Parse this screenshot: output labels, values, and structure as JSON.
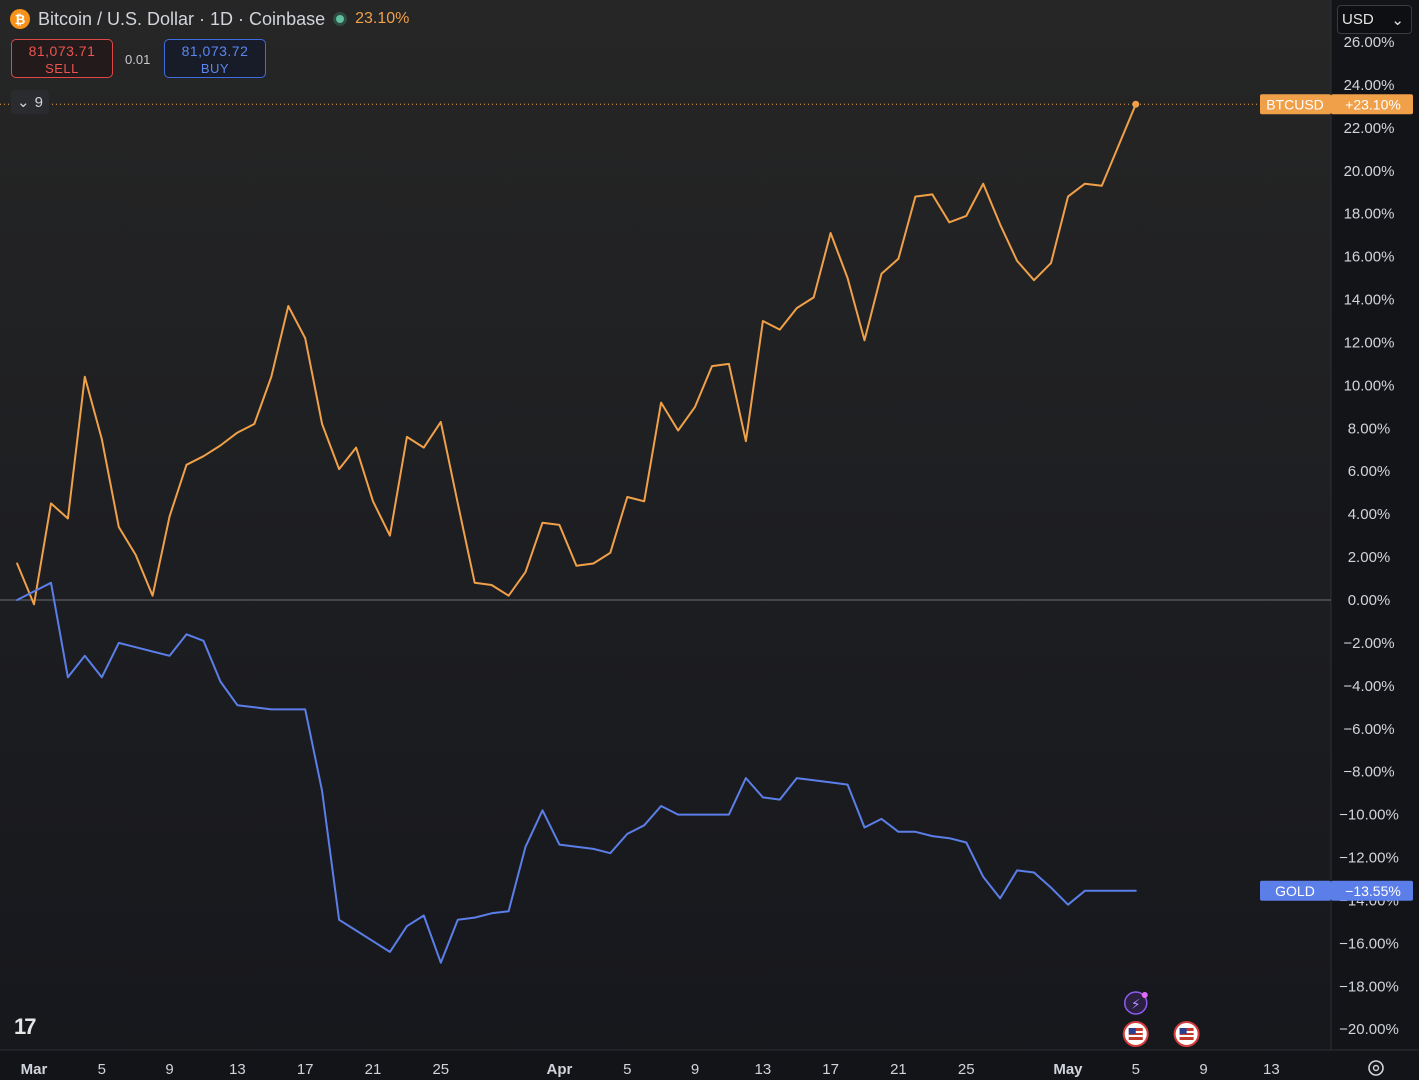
{
  "header": {
    "coin_icon": "bitcoin-icon",
    "symbol_title": "Bitcoin / U.S. Dollar · 1D · Coinbase",
    "market_status_icon": "market-open-dot-icon",
    "change_pct": "23.10%"
  },
  "trade": {
    "sell_price": "81,073.71",
    "sell_label": "SELL",
    "spread": "0.01",
    "buy_price": "81,073.72",
    "buy_label": "BUY"
  },
  "indicators": {
    "collapse_icon": "chevron-down-icon",
    "count": "9"
  },
  "currency": {
    "value": "USD",
    "icon": "chevron-down-icon"
  },
  "branding": {
    "logo_text": "17",
    "logo_icon": "tradingview-logo-icon"
  },
  "settings_icon": "gear-icon",
  "colors": {
    "btc": "#f0a049",
    "gold": "#5b7ee8",
    "sell": "#ef5350",
    "buy": "#5b86f0",
    "axis_text": "#d1d4dc"
  },
  "chart_data": {
    "type": "line",
    "ylabel": "",
    "y_unit": "%",
    "ylim": [
      -21.5,
      26.5
    ],
    "y_ticks": [
      26,
      24,
      22,
      20,
      18,
      16,
      14,
      12,
      10,
      8,
      6,
      4,
      2,
      0,
      -2,
      -4,
      -6,
      -8,
      -10,
      -12,
      -14,
      -16,
      -18,
      -20
    ],
    "y_tick_labels": [
      "26.00%",
      "24.00%",
      "22.00%",
      "20.00%",
      "18.00%",
      "16.00%",
      "14.00%",
      "12.00%",
      "10.00%",
      "8.00%",
      "6.00%",
      "4.00%",
      "2.00%",
      "0.00%",
      "−2.00%",
      "−4.00%",
      "−6.00%",
      "−8.00%",
      "−10.00%",
      "−12.00%",
      "−14.00%",
      "−16.00%",
      "−18.00%",
      "−20.00%"
    ],
    "x_range": [
      "2025-03-01",
      "2025-05-20"
    ],
    "x_ticks": [
      {
        "date": "2025-03-01",
        "label": "Mar",
        "bold": true
      },
      {
        "date": "2025-03-05",
        "label": "5"
      },
      {
        "date": "2025-03-09",
        "label": "9"
      },
      {
        "date": "2025-03-13",
        "label": "13"
      },
      {
        "date": "2025-03-17",
        "label": "17"
      },
      {
        "date": "2025-03-21",
        "label": "21"
      },
      {
        "date": "2025-03-25",
        "label": "25"
      },
      {
        "date": "2025-04-01",
        "label": "Apr",
        "bold": true
      },
      {
        "date": "2025-04-05",
        "label": "5"
      },
      {
        "date": "2025-04-09",
        "label": "9"
      },
      {
        "date": "2025-04-13",
        "label": "13"
      },
      {
        "date": "2025-04-17",
        "label": "17"
      },
      {
        "date": "2025-04-21",
        "label": "21"
      },
      {
        "date": "2025-04-25",
        "label": "25"
      },
      {
        "date": "2025-05-01",
        "label": "May",
        "bold": true
      },
      {
        "date": "2025-05-05",
        "label": "5"
      },
      {
        "date": "2025-05-09",
        "label": "9"
      },
      {
        "date": "2025-05-13",
        "label": "13"
      }
    ],
    "series": [
      {
        "name": "BTCUSD",
        "label": "BTCUSD",
        "value_label": "+23.10%",
        "color": "#f0a049",
        "x": [
          "2025-02-28",
          "2025-03-01",
          "2025-03-02",
          "2025-03-03",
          "2025-03-04",
          "2025-03-05",
          "2025-03-06",
          "2025-03-07",
          "2025-03-08",
          "2025-03-09",
          "2025-03-10",
          "2025-03-11",
          "2025-03-12",
          "2025-03-13",
          "2025-03-14",
          "2025-03-15",
          "2025-03-16",
          "2025-03-17",
          "2025-03-18",
          "2025-03-19",
          "2025-03-20",
          "2025-03-21",
          "2025-03-22",
          "2025-03-23",
          "2025-03-24",
          "2025-03-25",
          "2025-03-26",
          "2025-03-27",
          "2025-03-28",
          "2025-03-29",
          "2025-03-30",
          "2025-03-31",
          "2025-04-01",
          "2025-04-02",
          "2025-04-03",
          "2025-04-04",
          "2025-04-05",
          "2025-04-06",
          "2025-04-07",
          "2025-04-08",
          "2025-04-09",
          "2025-04-10",
          "2025-04-11",
          "2025-04-12",
          "2025-04-13",
          "2025-04-14",
          "2025-04-15",
          "2025-04-16",
          "2025-04-17",
          "2025-04-18",
          "2025-04-19",
          "2025-04-20",
          "2025-04-21",
          "2025-04-22",
          "2025-04-23",
          "2025-04-24",
          "2025-04-25",
          "2025-04-26",
          "2025-04-27",
          "2025-04-28",
          "2025-04-29",
          "2025-04-30",
          "2025-05-01",
          "2025-05-02",
          "2025-05-03",
          "2025-05-04",
          "2025-05-05"
        ],
        "values": [
          1.7,
          -0.2,
          4.5,
          3.8,
          10.4,
          7.5,
          3.4,
          2.1,
          0.2,
          3.9,
          6.3,
          6.7,
          7.2,
          7.8,
          8.2,
          10.4,
          13.7,
          12.2,
          8.2,
          6.1,
          7.1,
          4.6,
          3.0,
          7.6,
          7.1,
          8.3,
          4.5,
          0.8,
          0.7,
          0.2,
          1.3,
          3.6,
          3.5,
          1.6,
          1.7,
          2.2,
          4.8,
          4.6,
          9.2,
          7.9,
          9.0,
          10.9,
          11.0,
          7.4,
          13.0,
          12.6,
          13.6,
          14.1,
          17.1,
          15.0,
          12.1,
          15.2,
          15.9,
          18.8,
          18.9,
          17.6,
          17.9,
          19.4,
          17.5,
          15.8,
          14.9,
          15.7,
          18.8,
          19.4,
          19.3,
          21.2,
          23.1
        ]
      },
      {
        "name": "GOLD",
        "label": "GOLD",
        "value_label": "−13.55%",
        "color": "#5b7ee8",
        "x": [
          "2025-02-28",
          "2025-03-01",
          "2025-03-02",
          "2025-03-03",
          "2025-03-04",
          "2025-03-05",
          "2025-03-06",
          "2025-03-07",
          "2025-03-08",
          "2025-03-09",
          "2025-03-10",
          "2025-03-11",
          "2025-03-12",
          "2025-03-13",
          "2025-03-14",
          "2025-03-15",
          "2025-03-16",
          "2025-03-17",
          "2025-03-18",
          "2025-03-19",
          "2025-03-20",
          "2025-03-21",
          "2025-03-22",
          "2025-03-23",
          "2025-03-24",
          "2025-03-25",
          "2025-03-26",
          "2025-03-27",
          "2025-03-28",
          "2025-03-29",
          "2025-03-30",
          "2025-03-31",
          "2025-04-01",
          "2025-04-02",
          "2025-04-03",
          "2025-04-04",
          "2025-04-05",
          "2025-04-06",
          "2025-04-07",
          "2025-04-08",
          "2025-04-09",
          "2025-04-10",
          "2025-04-11",
          "2025-04-12",
          "2025-04-13",
          "2025-04-14",
          "2025-04-15",
          "2025-04-16",
          "2025-04-17",
          "2025-04-18",
          "2025-04-19",
          "2025-04-20",
          "2025-04-21",
          "2025-04-22",
          "2025-04-23",
          "2025-04-24",
          "2025-04-25",
          "2025-04-26",
          "2025-04-27",
          "2025-04-28",
          "2025-04-29",
          "2025-04-30",
          "2025-05-01",
          "2025-05-02",
          "2025-05-03",
          "2025-05-04",
          "2025-05-05"
        ],
        "values": [
          0.0,
          0.4,
          0.8,
          -3.6,
          -2.6,
          -3.6,
          -2.0,
          -2.2,
          -2.4,
          -2.6,
          -1.6,
          -1.9,
          -3.8,
          -4.9,
          -5.0,
          -5.1,
          -5.1,
          -5.1,
          -8.9,
          -14.9,
          -15.4,
          -15.9,
          -16.4,
          -15.2,
          -14.7,
          -16.9,
          -14.9,
          -14.8,
          -14.6,
          -14.5,
          -11.5,
          -9.8,
          -11.4,
          -11.5,
          -11.6,
          -11.8,
          -10.9,
          -10.5,
          -9.6,
          -10.0,
          -10.0,
          -10.0,
          -10.0,
          -8.3,
          -9.2,
          -9.3,
          -8.3,
          -8.4,
          -8.5,
          -8.6,
          -10.6,
          -10.2,
          -10.8,
          -10.8,
          -11.0,
          -11.1,
          -11.3,
          -12.9,
          -13.9,
          -12.6,
          -12.7,
          -13.4,
          -14.2,
          -13.55,
          -13.55,
          -13.55,
          -13.55
        ]
      }
    ],
    "events": [
      {
        "date": "2025-05-05",
        "icon": "lightning-event-icon"
      },
      {
        "date": "2025-05-05",
        "icon": "us-flag-event-icon"
      },
      {
        "date": "2025-05-08",
        "icon": "us-flag-event-icon"
      }
    ]
  }
}
